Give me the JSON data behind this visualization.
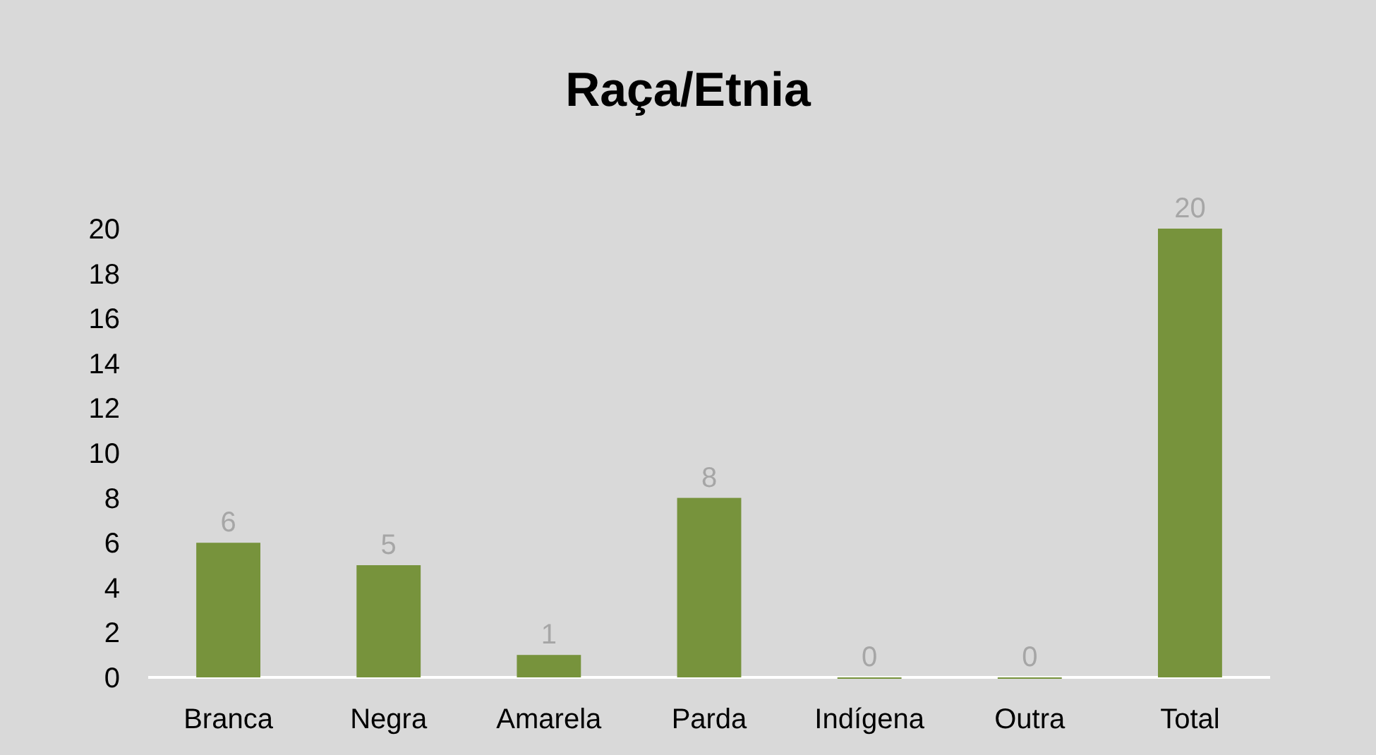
{
  "chart_data": {
    "type": "bar",
    "title": "Raça/Etnia",
    "categories": [
      "Branca",
      "Negra",
      "Amarela",
      "Parda",
      "Indígena",
      "Outra",
      "Total"
    ],
    "values": [
      6,
      5,
      1,
      8,
      0,
      0,
      20
    ],
    "color": "#77933c",
    "ylim": [
      0,
      20
    ],
    "yticks": [
      0,
      2,
      4,
      6,
      8,
      10,
      12,
      14,
      16,
      18,
      20
    ],
    "grid": false,
    "data_labels": true
  }
}
